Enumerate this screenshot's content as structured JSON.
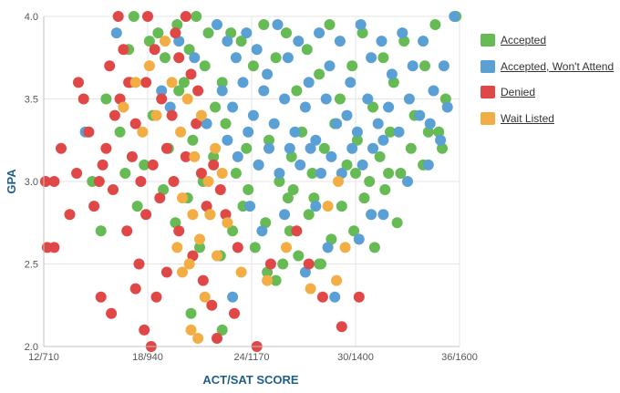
{
  "chart_data": {
    "type": "scatter",
    "xlabel": "ACT/SAT SCORE",
    "ylabel": "GPA",
    "xlim": [
      12,
      36
    ],
    "ylim": [
      2.0,
      4.0
    ],
    "x_ticks": [
      {
        "value": 12,
        "label": "12/710"
      },
      {
        "value": 18,
        "label": "18/940"
      },
      {
        "value": 24,
        "label": "24/1170"
      },
      {
        "value": 30,
        "label": "30/1400"
      },
      {
        "value": 36,
        "label": "36/1600"
      }
    ],
    "y_ticks": [
      {
        "value": 2.0,
        "label": "2.0"
      },
      {
        "value": 2.5,
        "label": "2.5"
      },
      {
        "value": 3.0,
        "label": "3.0"
      },
      {
        "value": 3.5,
        "label": "3.5"
      },
      {
        "value": 4.0,
        "label": "4.0"
      }
    ],
    "grid": true,
    "legend_position": "right",
    "series": [
      {
        "name": "Accepted",
        "color": "#66bb55",
        "points": [
          [
            17.2,
            4.0
          ],
          [
            18.6,
            3.9
          ],
          [
            19.7,
            3.95
          ],
          [
            20.4,
            3.8
          ],
          [
            20.8,
            4.0
          ],
          [
            21.3,
            3.7
          ],
          [
            21.9,
            3.45
          ],
          [
            22.3,
            3.6
          ],
          [
            22.8,
            3.9
          ],
          [
            23.4,
            3.85
          ],
          [
            24.1,
            3.7
          ],
          [
            24.7,
            3.95
          ],
          [
            25.4,
            3.75
          ],
          [
            26.0,
            3.9
          ],
          [
            26.6,
            3.55
          ],
          [
            27.2,
            3.8
          ],
          [
            27.9,
            3.65
          ],
          [
            28.5,
            3.95
          ],
          [
            29.1,
            3.5
          ],
          [
            29.8,
            3.7
          ],
          [
            30.4,
            3.9
          ],
          [
            31.0,
            3.45
          ],
          [
            31.6,
            3.75
          ],
          [
            32.2,
            3.6
          ],
          [
            32.8,
            3.85
          ],
          [
            33.4,
            3.4
          ],
          [
            34.0,
            3.7
          ],
          [
            34.6,
            3.95
          ],
          [
            35.2,
            3.5
          ],
          [
            35.8,
            4.0
          ],
          [
            34.8,
            3.3
          ],
          [
            33.9,
            3.1
          ],
          [
            15.6,
            3.5
          ],
          [
            16.4,
            3.3
          ],
          [
            17.0,
            3.6
          ],
          [
            17.8,
            3.1
          ],
          [
            18.3,
            3.4
          ],
          [
            19.2,
            3.2
          ],
          [
            19.8,
            3.55
          ],
          [
            20.6,
            3.25
          ],
          [
            21.2,
            3.0
          ],
          [
            21.8,
            3.15
          ],
          [
            22.5,
            3.35
          ],
          [
            23.1,
            3.05
          ],
          [
            23.7,
            3.2
          ],
          [
            24.4,
            3.1
          ],
          [
            25.0,
            3.25
          ],
          [
            25.6,
            3.0
          ],
          [
            26.3,
            3.15
          ],
          [
            26.9,
            3.3
          ],
          [
            27.5,
            3.05
          ],
          [
            28.2,
            3.2
          ],
          [
            28.8,
            3.35
          ],
          [
            29.5,
            3.1
          ],
          [
            30.1,
            3.25
          ],
          [
            30.8,
            3.0
          ],
          [
            31.4,
            3.15
          ],
          [
            32.0,
            3.3
          ],
          [
            32.6,
            3.05
          ],
          [
            33.2,
            3.2
          ],
          [
            34.2,
            3.3
          ],
          [
            35.0,
            3.2
          ],
          [
            14.8,
            3.0
          ],
          [
            15.3,
            2.7
          ],
          [
            16.7,
            3.05
          ],
          [
            17.4,
            2.85
          ],
          [
            18.9,
            2.95
          ],
          [
            19.6,
            2.75
          ],
          [
            20.3,
            2.9
          ],
          [
            21.0,
            2.6
          ],
          [
            21.6,
            2.8
          ],
          [
            22.2,
            2.55
          ],
          [
            22.9,
            2.7
          ],
          [
            23.5,
            2.85
          ],
          [
            24.2,
            2.6
          ],
          [
            24.8,
            2.75
          ],
          [
            25.4,
            2.4
          ],
          [
            26.1,
            2.9
          ],
          [
            26.7,
            2.55
          ],
          [
            27.3,
            2.8
          ],
          [
            27.9,
            2.5
          ],
          [
            28.6,
            2.65
          ],
          [
            29.2,
            2.85
          ],
          [
            29.9,
            2.7
          ],
          [
            30.5,
            2.9
          ],
          [
            31.1,
            2.6
          ],
          [
            31.7,
            2.95
          ],
          [
            32.4,
            2.75
          ],
          [
            25.8,
            2.5
          ],
          [
            28.0,
            2.5
          ],
          [
            20.5,
            2.2
          ],
          [
            22.3,
            2.1
          ],
          [
            23.8,
            2.95
          ],
          [
            26.4,
            2.95
          ],
          [
            27.6,
            2.9
          ],
          [
            24.9,
            2.45
          ],
          [
            26.2,
            2.7
          ],
          [
            30.0,
            3.05
          ],
          [
            31.9,
            3.05
          ],
          [
            19.0,
            3.75
          ],
          [
            18.1,
            3.85
          ],
          [
            16.9,
            3.8
          ],
          [
            20.1,
            3.6
          ],
          [
            21.5,
            3.9
          ]
        ]
      },
      {
        "name": "Accepted, Won't Attend",
        "color": "#5aa0d4",
        "points": [
          [
            22.0,
            3.95
          ],
          [
            22.6,
            3.85
          ],
          [
            23.1,
            3.75
          ],
          [
            23.7,
            3.9
          ],
          [
            24.3,
            3.8
          ],
          [
            24.9,
            3.65
          ],
          [
            25.5,
            3.95
          ],
          [
            26.1,
            3.75
          ],
          [
            26.7,
            3.85
          ],
          [
            27.3,
            3.6
          ],
          [
            27.9,
            3.9
          ],
          [
            28.5,
            3.7
          ],
          [
            29.1,
            3.85
          ],
          [
            29.7,
            3.6
          ],
          [
            30.3,
            3.95
          ],
          [
            30.9,
            3.75
          ],
          [
            31.5,
            3.85
          ],
          [
            32.1,
            3.65
          ],
          [
            32.7,
            3.9
          ],
          [
            33.3,
            3.7
          ],
          [
            33.9,
            3.85
          ],
          [
            34.5,
            3.55
          ],
          [
            35.1,
            3.7
          ],
          [
            35.7,
            4.0
          ],
          [
            22.3,
            3.55
          ],
          [
            22.9,
            3.45
          ],
          [
            23.5,
            3.6
          ],
          [
            24.1,
            3.4
          ],
          [
            24.7,
            3.55
          ],
          [
            25.3,
            3.35
          ],
          [
            25.9,
            3.5
          ],
          [
            26.5,
            3.3
          ],
          [
            27.1,
            3.45
          ],
          [
            27.7,
            3.25
          ],
          [
            28.3,
            3.5
          ],
          [
            28.9,
            3.35
          ],
          [
            29.5,
            3.4
          ],
          [
            30.1,
            3.3
          ],
          [
            30.7,
            3.5
          ],
          [
            31.3,
            3.35
          ],
          [
            31.9,
            3.45
          ],
          [
            32.5,
            3.3
          ],
          [
            33.1,
            3.5
          ],
          [
            33.7,
            3.4
          ],
          [
            34.3,
            3.35
          ],
          [
            34.9,
            3.25
          ],
          [
            35.3,
            3.45
          ],
          [
            22.6,
            3.25
          ],
          [
            23.2,
            3.15
          ],
          [
            23.8,
            3.3
          ],
          [
            24.4,
            3.1
          ],
          [
            25.0,
            3.2
          ],
          [
            25.6,
            3.05
          ],
          [
            26.2,
            3.2
          ],
          [
            26.8,
            3.1
          ],
          [
            27.4,
            3.2
          ],
          [
            28.0,
            3.05
          ],
          [
            28.6,
            3.15
          ],
          [
            29.2,
            3.05
          ],
          [
            29.8,
            3.2
          ],
          [
            30.4,
            3.1
          ],
          [
            31.0,
            3.2
          ],
          [
            31.6,
            3.25
          ],
          [
            21.4,
            3.35
          ],
          [
            20.7,
            3.75
          ],
          [
            19.8,
            3.85
          ],
          [
            19.3,
            3.45
          ],
          [
            18.8,
            3.55
          ],
          [
            14.4,
            3.3
          ],
          [
            16.2,
            3.9
          ],
          [
            23.9,
            2.85
          ],
          [
            24.6,
            2.7
          ],
          [
            25.9,
            2.8
          ],
          [
            27.1,
            2.45
          ],
          [
            28.4,
            2.6
          ],
          [
            28.8,
            2.3
          ],
          [
            30.2,
            2.65
          ],
          [
            30.9,
            2.8
          ],
          [
            31.6,
            2.8
          ],
          [
            22.9,
            2.3
          ],
          [
            27.7,
            2.85
          ],
          [
            33.0,
            3.0
          ],
          [
            34.2,
            3.1
          ]
        ]
      },
      {
        "name": "Denied",
        "color": "#e04848",
        "points": [
          [
            12.1,
            3.0
          ],
          [
            12.6,
            3.0
          ],
          [
            12.2,
            2.6
          ],
          [
            12.6,
            2.6
          ],
          [
            13.0,
            3.2
          ],
          [
            13.5,
            2.8
          ],
          [
            14.0,
            3.6
          ],
          [
            14.6,
            3.3
          ],
          [
            14.3,
            3.5
          ],
          [
            15.2,
            3.0
          ],
          [
            15.6,
            3.2
          ],
          [
            15.3,
            2.3
          ],
          [
            15.9,
            2.2
          ],
          [
            16.3,
            4.0
          ],
          [
            16.6,
            3.8
          ],
          [
            16.9,
            3.6
          ],
          [
            17.3,
            3.35
          ],
          [
            17.6,
            3.0
          ],
          [
            17.9,
            2.8
          ],
          [
            17.1,
            3.15
          ],
          [
            16.4,
            3.5
          ],
          [
            16.0,
            2.95
          ],
          [
            16.8,
            2.7
          ],
          [
            17.5,
            2.5
          ],
          [
            18.0,
            4.0
          ],
          [
            18.4,
            3.8
          ],
          [
            18.8,
            3.5
          ],
          [
            19.1,
            3.2
          ],
          [
            19.5,
            3.0
          ],
          [
            19.8,
            2.7
          ],
          [
            19.1,
            2.45
          ],
          [
            18.5,
            2.3
          ],
          [
            18.2,
            2.0
          ],
          [
            17.8,
            2.1
          ],
          [
            17.3,
            2.35
          ],
          [
            17.9,
            3.6
          ],
          [
            18.3,
            3.1
          ],
          [
            18.7,
            2.9
          ],
          [
            19.4,
            3.4
          ],
          [
            19.8,
            3.75
          ],
          [
            20.2,
            4.0
          ],
          [
            20.5,
            3.65
          ],
          [
            20.8,
            3.35
          ],
          [
            21.1,
            3.05
          ],
          [
            21.4,
            2.85
          ],
          [
            21.2,
            2.4
          ],
          [
            21.7,
            2.25
          ],
          [
            22.0,
            2.05
          ],
          [
            20.6,
            2.55
          ],
          [
            20.2,
            3.15
          ],
          [
            19.6,
            3.9
          ],
          [
            16.1,
            3.4
          ],
          [
            15.8,
            3.7
          ],
          [
            15.4,
            3.1
          ],
          [
            14.9,
            2.85
          ],
          [
            13.9,
            3.05
          ],
          [
            22.5,
            2.8
          ],
          [
            23.2,
            2.6
          ],
          [
            23.0,
            2.2
          ],
          [
            24.3,
            2.0
          ],
          [
            25.1,
            2.5
          ],
          [
            26.6,
            2.7
          ],
          [
            28.1,
            2.3
          ],
          [
            30.2,
            2.3
          ],
          [
            27.3,
            2.5
          ],
          [
            29.2,
            2.12
          ],
          [
            21.8,
            3.1
          ],
          [
            22.2,
            2.95
          ],
          [
            20.9,
            3.55
          ]
        ]
      },
      {
        "name": "Wait Listed",
        "color": "#f2ae44",
        "points": [
          [
            16.6,
            3.45
          ],
          [
            17.3,
            3.6
          ],
          [
            17.7,
            3.3
          ],
          [
            18.1,
            3.7
          ],
          [
            18.5,
            3.4
          ],
          [
            19.0,
            3.85
          ],
          [
            19.4,
            3.6
          ],
          [
            19.9,
            3.3
          ],
          [
            20.3,
            3.5
          ],
          [
            20.7,
            3.15
          ],
          [
            21.1,
            3.4
          ],
          [
            21.5,
            3.0
          ],
          [
            21.9,
            3.2
          ],
          [
            22.3,
            3.05
          ],
          [
            20.0,
            2.9
          ],
          [
            20.6,
            2.8
          ],
          [
            21.0,
            2.65
          ],
          [
            20.4,
            2.5
          ],
          [
            20.0,
            2.45
          ],
          [
            19.7,
            2.6
          ],
          [
            20.5,
            2.1
          ],
          [
            20.9,
            2.05
          ],
          [
            21.3,
            2.3
          ],
          [
            22.0,
            2.55
          ],
          [
            23.4,
            2.45
          ],
          [
            24.9,
            2.4
          ],
          [
            26.0,
            2.6
          ],
          [
            27.4,
            2.35
          ],
          [
            28.9,
            2.4
          ],
          [
            29.4,
            2.6
          ],
          [
            28.4,
            2.85
          ],
          [
            29.0,
            3.0
          ],
          [
            22.6,
            2.75
          ],
          [
            21.6,
            2.8
          ]
        ]
      }
    ]
  }
}
